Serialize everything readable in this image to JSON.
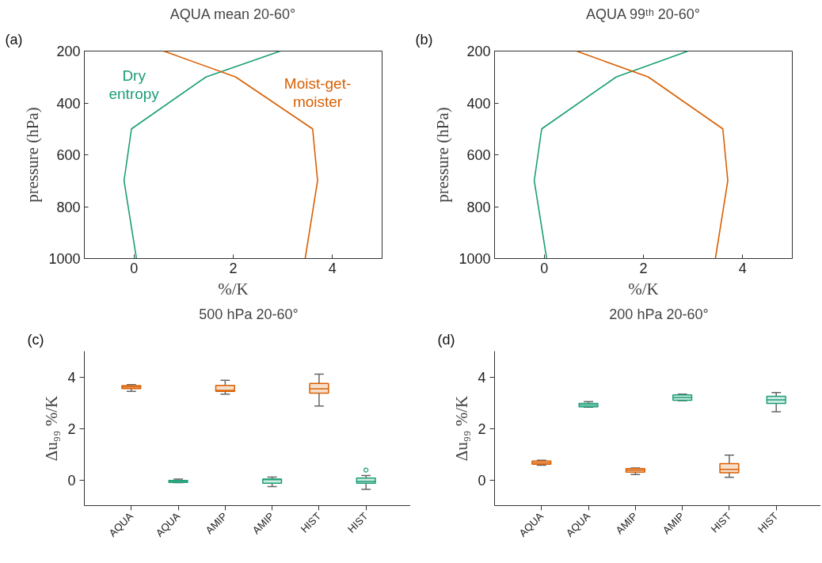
{
  "chart_data": [
    {
      "type": "line",
      "title": "AQUA mean 20-60°",
      "xlabel": "%/K",
      "ylabel": "pressure (hPa)",
      "annotations": [
        "(a)"
      ],
      "xlim": [
        -1,
        5
      ],
      "xticks": [
        0,
        2,
        4
      ],
      "ylim": [
        1000,
        200
      ],
      "yticks": [
        200,
        400,
        600,
        800,
        1000
      ],
      "series": [
        {
          "name": "Dry entropy",
          "color": "#1b9e77",
          "x": [
            2.95,
            1.45,
            -0.05,
            -0.2,
            0.05
          ],
          "values": [
            200,
            300,
            500,
            700,
            1000
          ]
        },
        {
          "name": "Moist-get-moister",
          "color": "#d95f02",
          "x": [
            0.6,
            2.05,
            3.6,
            3.7,
            3.45
          ],
          "values": [
            200,
            300,
            500,
            700,
            1000
          ]
        }
      ]
    },
    {
      "type": "line",
      "title": "AQUA 99ᵗʰ 20-60°",
      "xlabel": "%/K",
      "ylabel": "pressure (hPa)",
      "annotations": [
        "(b)"
      ],
      "xlim": [
        -1,
        5
      ],
      "xticks": [
        0,
        2,
        4
      ],
      "ylim": [
        1000,
        200
      ],
      "yticks": [
        200,
        400,
        600,
        800,
        1000
      ],
      "series": [
        {
          "color": "#1b9e77",
          "x": [
            2.9,
            1.45,
            -0.05,
            -0.2,
            0.05
          ],
          "values": [
            200,
            300,
            500,
            700,
            1000
          ]
        },
        {
          "color": "#d95f02",
          "x": [
            0.65,
            2.1,
            3.6,
            3.7,
            3.45
          ],
          "values": [
            200,
            300,
            500,
            700,
            1000
          ]
        }
      ]
    },
    {
      "type": "box",
      "title": "500 hPa 20-60°",
      "ylabel": "Δu₉₉ %/K",
      "annotations": [
        "(c)"
      ],
      "categories": [
        "AQUA",
        "AQUA",
        "AMIP",
        "AMIP",
        "HIST",
        "HIST"
      ],
      "ylim": [
        -1,
        5
      ],
      "yticks": [
        0,
        2,
        4
      ],
      "colors": [
        "#d95f02",
        "#1b9e77",
        "#d95f02",
        "#1b9e77",
        "#d95f02",
        "#1b9e77"
      ],
      "boxes": [
        {
          "low": 3.44,
          "q1": 3.55,
          "median": 3.61,
          "q3": 3.66,
          "high": 3.7
        },
        {
          "low": -0.11,
          "q1": -0.1,
          "median": -0.06,
          "q3": -0.02,
          "high": 0.03
        },
        {
          "low": 3.33,
          "q1": 3.44,
          "median": 3.48,
          "q3": 3.67,
          "high": 3.87
        },
        {
          "low": -0.26,
          "q1": -0.13,
          "median": 0.01,
          "q3": 0.03,
          "high": 0.11
        },
        {
          "low": 2.87,
          "q1": 3.37,
          "median": 3.54,
          "q3": 3.75,
          "high": 4.11
        },
        {
          "low": -0.37,
          "q1": -0.13,
          "median": -0.06,
          "q3": 0.07,
          "high": 0.17,
          "outliers": [
            0.38
          ]
        }
      ]
    },
    {
      "type": "box",
      "title": "200 hPa 20-60°",
      "ylabel": "Δu₉₉ %/K",
      "annotations": [
        "(d)"
      ],
      "categories": [
        "AQUA",
        "AQUA",
        "AMIP",
        "AMIP",
        "HIST",
        "HIST"
      ],
      "ylim": [
        -1,
        5
      ],
      "yticks": [
        0,
        2,
        4
      ],
      "colors": [
        "#d95f02",
        "#1b9e77",
        "#d95f02",
        "#1b9e77",
        "#d95f02",
        "#1b9e77"
      ],
      "boxes": [
        {
          "low": 0.57,
          "q1": 0.61,
          "median": 0.66,
          "q3": 0.73,
          "high": 0.76
        },
        {
          "low": 2.82,
          "q1": 2.84,
          "median": 2.91,
          "q3": 2.97,
          "high": 3.04
        },
        {
          "low": 0.21,
          "q1": 0.3,
          "median": 0.38,
          "q3": 0.44,
          "high": 0.46
        },
        {
          "low": 3.08,
          "q1": 3.09,
          "median": 3.2,
          "q3": 3.3,
          "high": 3.33
        },
        {
          "low": 0.1,
          "q1": 0.28,
          "median": 0.41,
          "q3": 0.63,
          "high": 0.96
        },
        {
          "low": 2.65,
          "q1": 2.97,
          "median": 3.11,
          "q3": 3.25,
          "high": 3.39
        }
      ]
    }
  ]
}
